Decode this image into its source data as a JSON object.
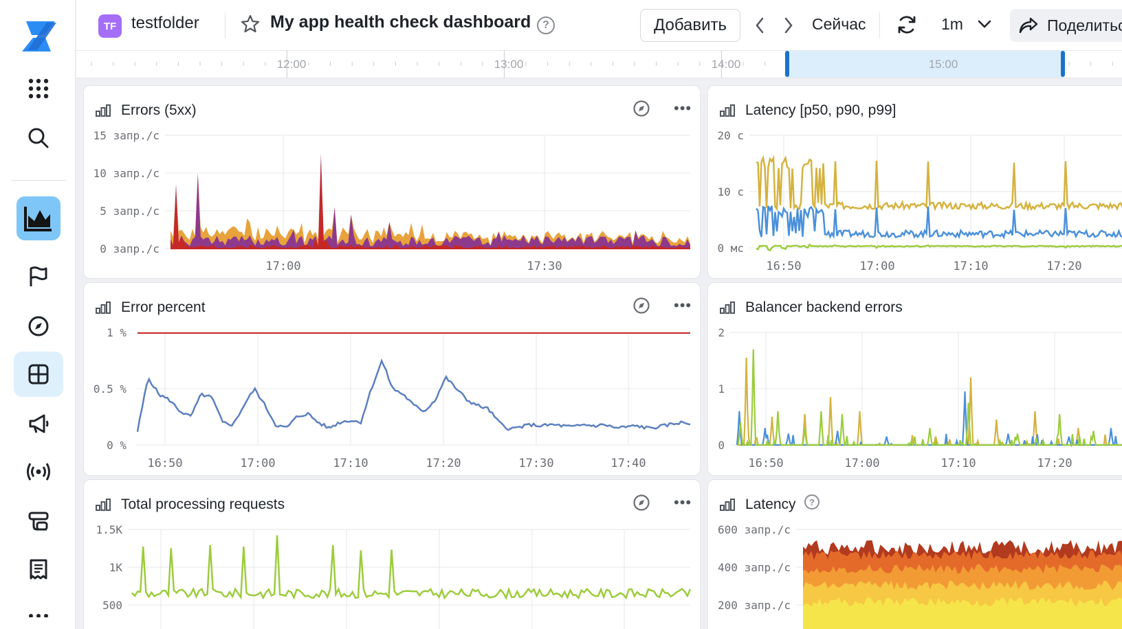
{
  "header": {
    "folder_badge": "TF",
    "folder_name": "testfolder",
    "dashboard_title": "My app health check dashboard",
    "add_label": "Добавить",
    "now_label": "Сейчас",
    "interval": "1m",
    "share_label": "Поделиться"
  },
  "sidebar": {
    "items": [
      {
        "name": "logo",
        "icon": "cloud-logo-icon"
      },
      {
        "name": "services",
        "icon": "grid-dots-icon"
      },
      {
        "name": "search",
        "icon": "search-icon"
      },
      {
        "name": "monitoring",
        "icon": "crown-chart-icon",
        "active": true
      },
      {
        "name": "alerts",
        "icon": "flag-icon"
      },
      {
        "name": "explore",
        "icon": "compass-icon"
      },
      {
        "name": "dashboards",
        "icon": "dashboard-grid-icon",
        "selected": true
      },
      {
        "name": "notifications",
        "icon": "megaphone-icon"
      },
      {
        "name": "channels",
        "icon": "broadcast-icon"
      },
      {
        "name": "templates",
        "icon": "stack-icon"
      },
      {
        "name": "reports",
        "icon": "receipt-icon"
      },
      {
        "name": "more",
        "icon": "more-dots-icon"
      }
    ]
  },
  "timeline": {
    "labels": [
      "12:00",
      "13:00",
      "14:00",
      "15:00"
    ],
    "selection_color": "#dceefc",
    "handle_color": "#1a73c9"
  },
  "panels": {
    "errors": {
      "title": "Errors (5xx)",
      "y_ticks": [
        "15 запр./с",
        "10 запр./с",
        "5 запр./с",
        "0 запр./с"
      ],
      "x_ticks": [
        "17:00",
        "17:30"
      ]
    },
    "latency_p": {
      "title": "Latency [p50, p90, p99]",
      "y_ticks": [
        "20 с",
        "10 с",
        "0 мс"
      ],
      "x_ticks": [
        "16:50",
        "17:00",
        "17:10",
        "17:20"
      ]
    },
    "error_percent": {
      "title": "Error percent",
      "y_ticks": [
        "1 %",
        "0.5 %",
        "0 %"
      ],
      "x_ticks": [
        "16:50",
        "17:00",
        "17:10",
        "17:20",
        "17:30",
        "17:40"
      ]
    },
    "balancer": {
      "title": "Balancer backend errors",
      "y_ticks": [
        "2",
        "1",
        "0"
      ],
      "x_ticks": [
        "16:50",
        "17:00",
        "17:10",
        "17:20"
      ]
    },
    "total_requests": {
      "title": "Total processing requests",
      "y_ticks": [
        "1.5K",
        "1K",
        "500"
      ]
    },
    "latency_hist": {
      "title": "Latency",
      "y_ticks": [
        "600 запр./с",
        "400 запр./с",
        "200 запр./с"
      ]
    }
  },
  "chart_data": [
    {
      "type": "area",
      "title": "Errors (5xx)",
      "ylim": [
        0,
        15
      ],
      "x_range": [
        "16:47",
        "17:47"
      ],
      "spikes_note_free": true,
      "series": [
        {
          "color": "#e8a33d"
        },
        {
          "color": "#8e3a8c"
        },
        {
          "color": "#c62828"
        }
      ],
      "points": [
        [
          16.8,
          0.4
        ],
        [
          16.83,
          9
        ],
        [
          16.86,
          1.5
        ],
        [
          16.9,
          0.8
        ],
        [
          16.95,
          10
        ],
        [
          17.0,
          1.2
        ],
        [
          17.06,
          2.5
        ],
        [
          17.1,
          0.9
        ],
        [
          17.15,
          3.5
        ],
        [
          17.2,
          1.8
        ],
        [
          17.25,
          12.5
        ],
        [
          17.28,
          5
        ],
        [
          17.33,
          3.8
        ],
        [
          17.4,
          4
        ],
        [
          17.5,
          1.5
        ],
        [
          17.6,
          1.2
        ],
        [
          17.7,
          1
        ],
        [
          17.78,
          2
        ]
      ],
      "grid": true,
      "legend": "none"
    },
    {
      "type": "line",
      "title": "Latency [p50, p90, p99]",
      "ylim": [
        0,
        20
      ],
      "series": [
        {
          "color": "#d4b23e",
          "level": 7.5,
          "peak": 16
        },
        {
          "color": "#4a90d9",
          "level": 2.5,
          "peak": 7.5
        },
        {
          "color": "#9ccc3d",
          "level": 0.3,
          "peak": 0.6
        }
      ]
    },
    {
      "type": "line",
      "title": "Error percent",
      "ylim": [
        0,
        1
      ],
      "threshold": 1,
      "series": [
        {
          "color": "#5b7fbf",
          "values": [
            0.12,
            0.6,
            0.45,
            0.4,
            0.3,
            0.25,
            0.45,
            0.42,
            0.2,
            0.18,
            0.35,
            0.5,
            0.35,
            0.18,
            0.15,
            0.25,
            0.28,
            0.2,
            0.15,
            0.2,
            0.22,
            0.2,
            0.5,
            0.75,
            0.5,
            0.45,
            0.35,
            0.3,
            0.4,
            0.6,
            0.5,
            0.4,
            0.35,
            0.32,
            0.2,
            0.14,
            0.16,
            0.18,
            0.17,
            0.18,
            0.17,
            0.16,
            0.18,
            0.17,
            0.18,
            0.15,
            0.16,
            0.17,
            0.15,
            0.16,
            0.18,
            0.2,
            0.19
          ]
        }
      ]
    },
    {
      "type": "line",
      "title": "Balancer backend errors",
      "ylim": [
        0,
        2
      ],
      "series": [
        {
          "color": "#d4b23e"
        },
        {
          "color": "#4a90d9"
        },
        {
          "color": "#9ccc3d"
        }
      ]
    },
    {
      "type": "line",
      "title": "Total processing requests",
      "ylim": [
        500,
        1500
      ],
      "series": [
        {
          "color": "#9ccc3d"
        }
      ]
    },
    {
      "type": "area",
      "title": "Latency",
      "ylim": [
        200,
        600
      ],
      "series": [
        {
          "color": "#b23a1e"
        },
        {
          "color": "#e46a2a"
        },
        {
          "color": "#f29b34"
        },
        {
          "color": "#f7c843"
        },
        {
          "color": "#f6e54a"
        }
      ]
    }
  ]
}
